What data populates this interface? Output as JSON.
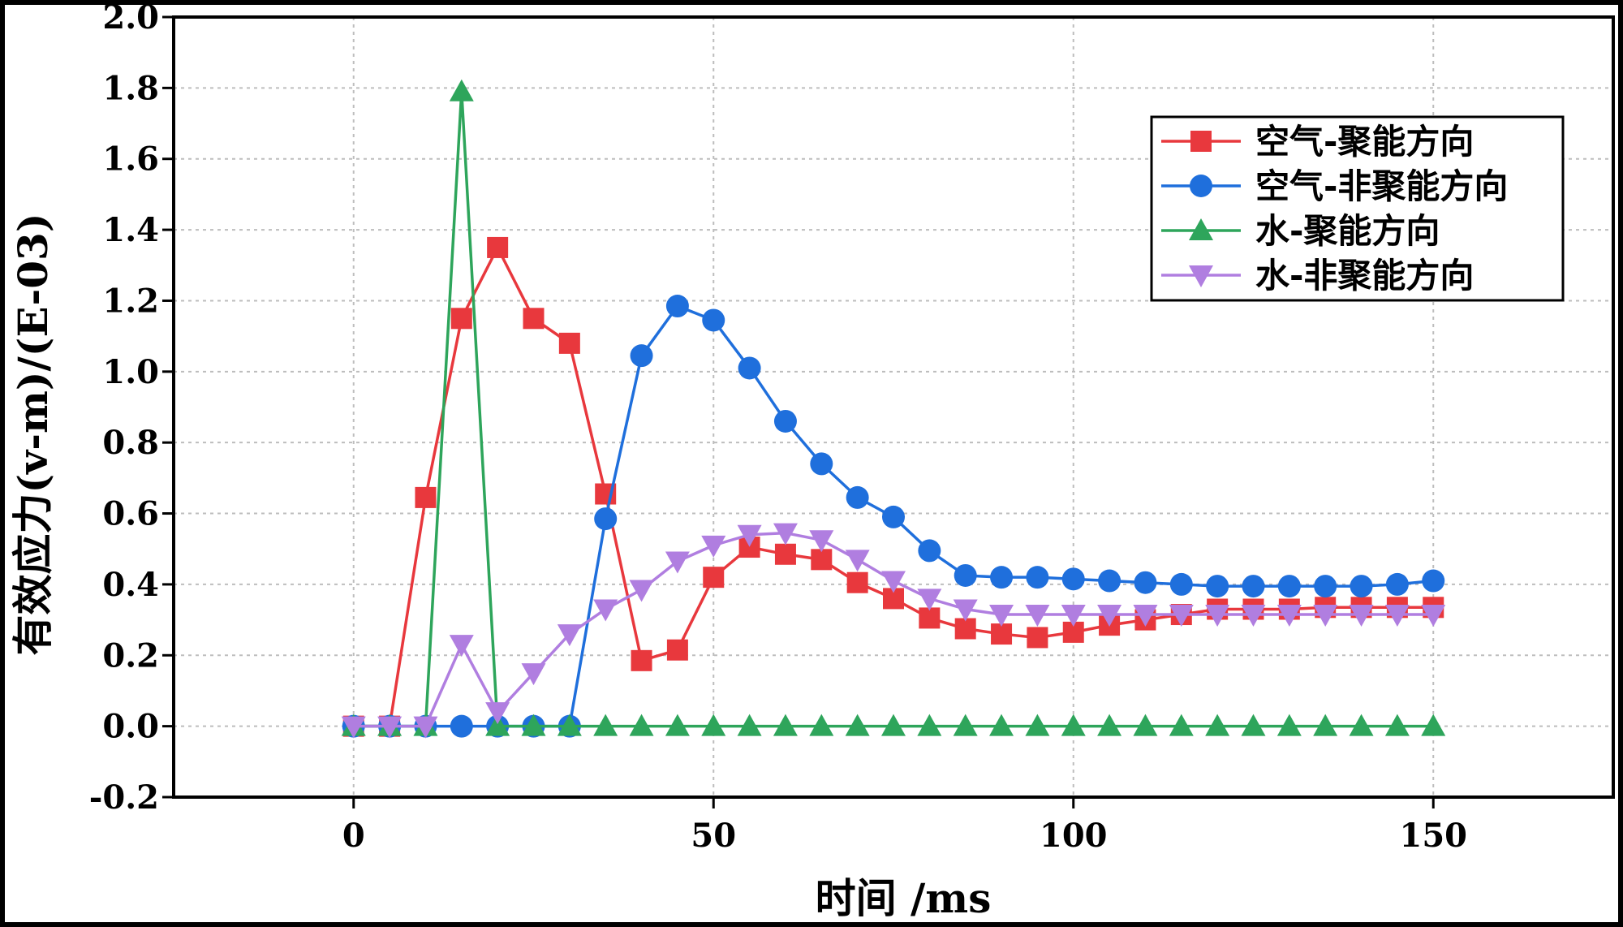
{
  "chart_data": {
    "type": "line",
    "xlabel": "时间 /ms",
    "ylabel": "有效应力(v-m)/(E-03)",
    "xlim": [
      -25,
      175
    ],
    "ylim": [
      -0.2,
      2.0
    ],
    "xticks": [
      0,
      50,
      100,
      150
    ],
    "xtick_labels": [
      "0",
      "50",
      "100",
      "150"
    ],
    "yticks": [
      -0.2,
      0.0,
      0.2,
      0.4,
      0.6,
      0.8,
      1.0,
      1.2,
      1.4,
      1.6,
      1.8,
      2.0
    ],
    "ytick_labels": [
      "-0.2",
      "0.0",
      "0.2",
      "0.4",
      "0.6",
      "0.8",
      "1.0",
      "1.2",
      "1.4",
      "1.6",
      "1.8",
      "2.0"
    ],
    "grid": true,
    "legend_position": "top-right",
    "x": [
      0,
      5,
      10,
      15,
      20,
      25,
      30,
      35,
      40,
      45,
      50,
      55,
      60,
      65,
      70,
      75,
      80,
      85,
      90,
      95,
      100,
      105,
      110,
      115,
      120,
      125,
      130,
      135,
      140,
      145,
      150
    ],
    "series": [
      {
        "name": "空气-聚能方向",
        "color": "#e8383d",
        "marker": "square",
        "values": [
          0.0,
          0.0,
          0.645,
          1.15,
          1.35,
          1.15,
          1.08,
          0.655,
          0.185,
          0.215,
          0.42,
          0.505,
          0.485,
          0.47,
          0.405,
          0.36,
          0.305,
          0.275,
          0.26,
          0.25,
          0.265,
          0.285,
          0.3,
          0.315,
          0.33,
          0.33,
          0.33,
          0.335,
          0.335,
          0.335,
          0.335
        ]
      },
      {
        "name": "空气-非聚能方向",
        "color": "#1f6fdc",
        "marker": "circle",
        "values": [
          0.0,
          0.0,
          0.0,
          0.0,
          0.0,
          0.0,
          0.0,
          0.585,
          1.045,
          1.185,
          1.145,
          1.01,
          0.86,
          0.74,
          0.645,
          0.59,
          0.495,
          0.425,
          0.42,
          0.42,
          0.415,
          0.41,
          0.405,
          0.4,
          0.395,
          0.395,
          0.395,
          0.395,
          0.395,
          0.4,
          0.41
        ]
      },
      {
        "name": "水-聚能方向",
        "color": "#2ea55b",
        "marker": "triangle-up",
        "values": [
          0.0,
          0.0,
          0.0,
          1.79,
          0.0,
          0.0,
          0.0,
          0.0,
          0.0,
          0.0,
          0.0,
          0.0,
          0.0,
          0.0,
          0.0,
          0.0,
          0.0,
          0.0,
          0.0,
          0.0,
          0.0,
          0.0,
          0.0,
          0.0,
          0.0,
          0.0,
          0.0,
          0.0,
          0.0,
          0.0,
          0.0
        ]
      },
      {
        "name": "水-非聚能方向",
        "color": "#b07ee0",
        "marker": "triangle-down",
        "values": [
          0.0,
          0.0,
          0.0,
          0.23,
          0.04,
          0.15,
          0.26,
          0.33,
          0.385,
          0.465,
          0.51,
          0.54,
          0.545,
          0.525,
          0.47,
          0.41,
          0.36,
          0.33,
          0.315,
          0.315,
          0.315,
          0.315,
          0.315,
          0.315,
          0.315,
          0.315,
          0.315,
          0.315,
          0.315,
          0.315,
          0.315
        ]
      }
    ]
  }
}
